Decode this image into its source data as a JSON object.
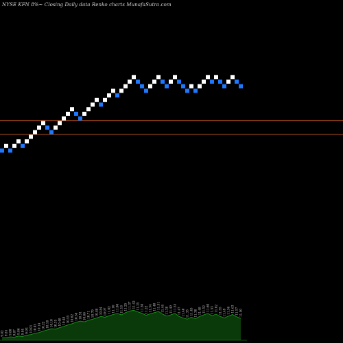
{
  "chart_data": {
    "type": "renko",
    "title": "NYSE KFN  8%~  Closing Daily data  Renko  charts MunafaSutra.com",
    "grid": false,
    "colors": {
      "background": "#000000",
      "up_brick": "#ffffff",
      "down_brick": "#1e78ff",
      "reference_line": "#b5501f",
      "volume_fill": "#0a3a0a",
      "volume_line": "#1fa31f",
      "volume_label": "#cfcfcf"
    },
    "reference_lines": [
      {
        "level_index": 6.6
      },
      {
        "level_index": 3.6
      }
    ],
    "bricks": [
      {
        "dir": "down",
        "level": 0
      },
      {
        "dir": "up",
        "level": 1
      },
      {
        "dir": "down",
        "level": 0
      },
      {
        "dir": "up",
        "level": 1
      },
      {
        "dir": "up",
        "level": 2
      },
      {
        "dir": "down",
        "level": 1
      },
      {
        "dir": "up",
        "level": 2
      },
      {
        "dir": "up",
        "level": 3
      },
      {
        "dir": "up",
        "level": 4
      },
      {
        "dir": "up",
        "level": 5
      },
      {
        "dir": "up",
        "level": 6
      },
      {
        "dir": "down",
        "level": 5
      },
      {
        "dir": "down",
        "level": 4
      },
      {
        "dir": "up",
        "level": 5
      },
      {
        "dir": "up",
        "level": 6
      },
      {
        "dir": "up",
        "level": 7
      },
      {
        "dir": "up",
        "level": 8
      },
      {
        "dir": "up",
        "level": 9
      },
      {
        "dir": "down",
        "level": 8
      },
      {
        "dir": "down",
        "level": 7
      },
      {
        "dir": "up",
        "level": 8
      },
      {
        "dir": "up",
        "level": 9
      },
      {
        "dir": "up",
        "level": 10
      },
      {
        "dir": "up",
        "level": 11
      },
      {
        "dir": "down",
        "level": 10
      },
      {
        "dir": "up",
        "level": 11
      },
      {
        "dir": "up",
        "level": 12
      },
      {
        "dir": "up",
        "level": 13
      },
      {
        "dir": "down",
        "level": 12
      },
      {
        "dir": "up",
        "level": 13
      },
      {
        "dir": "up",
        "level": 14
      },
      {
        "dir": "up",
        "level": 15
      },
      {
        "dir": "up",
        "level": 16
      },
      {
        "dir": "down",
        "level": 15
      },
      {
        "dir": "down",
        "level": 14
      },
      {
        "dir": "down",
        "level": 13
      },
      {
        "dir": "up",
        "level": 14
      },
      {
        "dir": "up",
        "level": 15
      },
      {
        "dir": "up",
        "level": 16
      },
      {
        "dir": "down",
        "level": 15
      },
      {
        "dir": "down",
        "level": 14
      },
      {
        "dir": "up",
        "level": 15
      },
      {
        "dir": "up",
        "level": 16
      },
      {
        "dir": "down",
        "level": 15
      },
      {
        "dir": "down",
        "level": 14
      },
      {
        "dir": "down",
        "level": 13
      },
      {
        "dir": "up",
        "level": 14
      },
      {
        "dir": "down",
        "level": 13
      },
      {
        "dir": "up",
        "level": 14
      },
      {
        "dir": "up",
        "level": 15
      },
      {
        "dir": "up",
        "level": 16
      },
      {
        "dir": "down",
        "level": 15
      },
      {
        "dir": "up",
        "level": 16
      },
      {
        "dir": "down",
        "level": 15
      },
      {
        "dir": "down",
        "level": 14
      },
      {
        "dir": "up",
        "level": 15
      },
      {
        "dir": "up",
        "level": 16
      },
      {
        "dir": "down",
        "level": 15
      },
      {
        "dir": "down",
        "level": 14
      }
    ],
    "volume": [
      0.06,
      0.07,
      0.09,
      0.08,
      0.11,
      0.1,
      0.13,
      0.15,
      0.18,
      0.2,
      0.24,
      0.27,
      0.3,
      0.29,
      0.33,
      0.36,
      0.4,
      0.43,
      0.47,
      0.5,
      0.48,
      0.52,
      0.55,
      0.58,
      0.62,
      0.6,
      0.64,
      0.67,
      0.7,
      0.66,
      0.72,
      0.76,
      0.78,
      0.74,
      0.7,
      0.65,
      0.69,
      0.72,
      0.75,
      0.68,
      0.63,
      0.66,
      0.7,
      0.62,
      0.58,
      0.55,
      0.6,
      0.56,
      0.62,
      0.66,
      0.7,
      0.64,
      0.68,
      0.62,
      0.58,
      0.63,
      0.67,
      0.61,
      0.57
    ],
    "volume_labels": [
      "9.82",
      "9.85",
      "9.80",
      "9.87",
      "9.86",
      "9.84",
      "9.93",
      "10.01",
      "10.03",
      "10.14",
      "10.22",
      "10.18",
      "10.10",
      "10.35",
      "10.40",
      "10.48",
      "10.55",
      "10.62",
      "10.58",
      "10.51",
      "10.66",
      "10.71",
      "10.79",
      "10.88",
      "10.84",
      "10.97",
      "11.02",
      "11.10",
      "11.06",
      "11.18",
      "11.25",
      "11.37",
      "11.42",
      "11.35",
      "11.30",
      "11.22",
      "11.34",
      "11.40",
      "11.51",
      "11.44",
      "11.38",
      "11.49",
      "11.55",
      "11.47",
      "11.40",
      "11.33",
      "11.45",
      "11.38",
      "11.48",
      "11.52",
      "11.60",
      "11.53",
      "11.62",
      "11.55",
      "11.49",
      "11.56",
      "11.63",
      "11.57",
      "11.50"
    ]
  }
}
